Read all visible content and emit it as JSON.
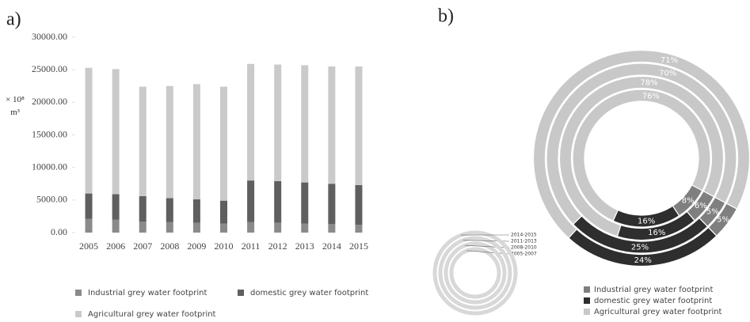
{
  "panels": [
    "a)",
    "b)"
  ],
  "chart_data": [
    {
      "type": "bar",
      "stacked": true,
      "y_label": "× 10⁸ m³",
      "categories": [
        "2005",
        "2006",
        "2007",
        "2008",
        "2009",
        "2010",
        "2011",
        "2012",
        "2013",
        "2014",
        "2015"
      ],
      "series": [
        {
          "name": "Industrial grey water footprint",
          "color": "#8a8a8a",
          "values": [
            2100,
            2000,
            1700,
            1600,
            1500,
            1400,
            1600,
            1500,
            1400,
            1300,
            1200
          ]
        },
        {
          "name": "domestic grey water footprint",
          "color": "#5f5f5f",
          "values": [
            3900,
            3900,
            3900,
            3700,
            3600,
            3500,
            6400,
            6400,
            6300,
            6200,
            6100
          ]
        },
        {
          "name": "Agricultural grey water footprint",
          "color": "#cacaca",
          "values": [
            19300,
            19200,
            16800,
            17200,
            17700,
            17500,
            17900,
            17900,
            18000,
            18000,
            18200
          ]
        }
      ],
      "ylim": [
        0,
        30000
      ],
      "yticks": [
        {
          "value": 0,
          "label": "0.00"
        },
        {
          "value": 5000,
          "label": "5000.00"
        },
        {
          "value": 10000,
          "label": "10000.00"
        },
        {
          "value": 15000,
          "label": "15000.00"
        },
        {
          "value": 20000,
          "label": "20000.00"
        },
        {
          "value": 25000,
          "label": "25000.00"
        },
        {
          "value": 30000,
          "label": "30000.00"
        }
      ],
      "grid": false,
      "legend": "bottom"
    },
    {
      "type": "donut",
      "categories": [
        "Industrial grey water footprint",
        "domestic grey water footprint",
        "Agricultural grey water footprint"
      ],
      "colors": [
        "#7f7f7f",
        "#2e2e2e",
        "#c8c8c8"
      ],
      "rings": [
        {
          "name": "2005-2007",
          "values": [
            8,
            16,
            76
          ],
          "value_labels": [
            "8%",
            "16%",
            "76%"
          ]
        },
        {
          "name": "2008-2010",
          "values": [
            6,
            16,
            78
          ],
          "value_labels": [
            "6%",
            "16%",
            "78%"
          ]
        },
        {
          "name": "2011-2013",
          "values": [
            5,
            25,
            70
          ],
          "value_labels": [
            "5%",
            "25%",
            "70%"
          ]
        },
        {
          "name": "2014-2015",
          "values": [
            5,
            24,
            71
          ],
          "value_labels": [
            "5%",
            "24%",
            "71%"
          ]
        }
      ],
      "legend": "bottom-right"
    }
  ]
}
